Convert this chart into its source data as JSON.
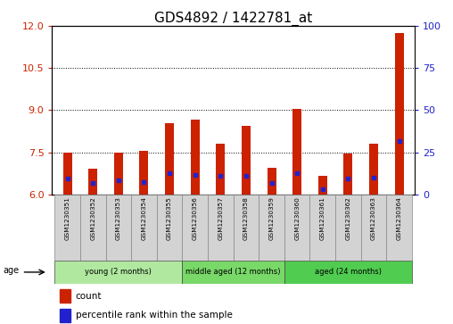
{
  "title": "GDS4892 / 1422781_at",
  "samples": [
    "GSM1230351",
    "GSM1230352",
    "GSM1230353",
    "GSM1230354",
    "GSM1230355",
    "GSM1230356",
    "GSM1230357",
    "GSM1230358",
    "GSM1230359",
    "GSM1230360",
    "GSM1230361",
    "GSM1230362",
    "GSM1230363",
    "GSM1230364"
  ],
  "red_values": [
    7.5,
    6.9,
    7.5,
    7.55,
    8.55,
    8.65,
    7.8,
    8.45,
    6.95,
    9.05,
    6.65,
    7.45,
    7.8,
    11.75
  ],
  "blue_values": [
    6.55,
    6.4,
    6.5,
    6.45,
    6.75,
    6.7,
    6.65,
    6.65,
    6.4,
    6.75,
    6.2,
    6.55,
    6.6,
    7.9
  ],
  "ylim_left": [
    6,
    12
  ],
  "ylim_right": [
    0,
    100
  ],
  "yticks_left": [
    6,
    7.5,
    9,
    10.5,
    12
  ],
  "yticks_right": [
    0,
    25,
    50,
    75,
    100
  ],
  "dotted_lines": [
    7.5,
    9.0,
    10.5
  ],
  "groups": [
    {
      "label": "young (2 months)",
      "start": 0,
      "end": 5
    },
    {
      "label": "middle aged (12 months)",
      "start": 5,
      "end": 9
    },
    {
      "label": "aged (24 months)",
      "start": 9,
      "end": 14
    }
  ],
  "group_colors": [
    "#b0e8a0",
    "#78d868",
    "#50cc50"
  ],
  "age_label": "age",
  "legend_count": "count",
  "legend_percentile": "percentile rank within the sample",
  "bar_color": "#cc2200",
  "blue_color": "#2222cc",
  "bar_width": 0.35,
  "base": 6.0,
  "tick_label_color_left": "#cc2200",
  "tick_label_color_right": "#2222cc",
  "background_color": "#ffffff",
  "title_fontsize": 11,
  "tick_fontsize": 8,
  "label_fontsize": 8
}
